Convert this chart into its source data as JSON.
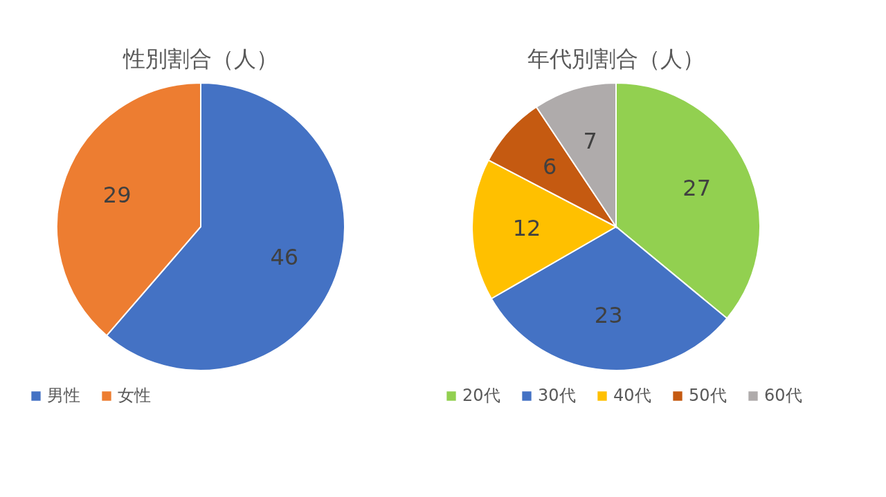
{
  "chart_data": [
    {
      "type": "pie",
      "title": "性別割合（人）",
      "categories": [
        "男性",
        "女性"
      ],
      "values": [
        46,
        29
      ],
      "colors": [
        "#4472c4",
        "#ed7d31"
      ],
      "data_labels": true,
      "legend": "bottom"
    },
    {
      "type": "pie",
      "title": "年代別割合（人）",
      "categories": [
        "20代",
        "30代",
        "40代",
        "50代",
        "60代"
      ],
      "values": [
        27,
        23,
        12,
        6,
        7
      ],
      "colors": [
        "#92d050",
        "#4472c4",
        "#ffc000",
        "#c55a11",
        "#afabab"
      ],
      "data_labels": true,
      "legend": "bottom"
    }
  ]
}
